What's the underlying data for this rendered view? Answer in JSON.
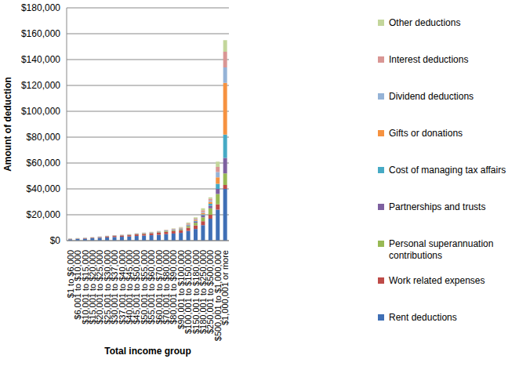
{
  "chart_data": {
    "type": "bar",
    "stacked": true,
    "grid": true,
    "legend": "right",
    "x_label": "Total income group",
    "y_label": "Amount of deduction",
    "categories": [
      "$1 to $6,000",
      "$6,001 to $10,000",
      "$10,001 to $15,000",
      "$15,001 to $20,000",
      "$20,001 to $25,000",
      "$25,001 to $30,000",
      "$30,001 to $37,000",
      "$37,001 to $40,000",
      "$40,001 to $45,000",
      "$45,001 to $50,000",
      "$50,001 to $55,000",
      "$55,001 to $60,000",
      "$60,001 to $70,000",
      "$70,001 to $80,000",
      "$80,001 to $90,000",
      "$90,001 to $100,000",
      "$100,001 to $150,000",
      "$150,001 to $180,000",
      "$180,001 to $250,000",
      "$250,001 to $500,000",
      "$500,001 to $1,000,000",
      "$1,000,001 or more"
    ],
    "ylim": [
      0,
      180000
    ],
    "yticks": [
      {
        "value": 0,
        "label": "$0"
      },
      {
        "value": 20000,
        "label": "$20,000"
      },
      {
        "value": 40000,
        "label": "$40,000"
      },
      {
        "value": 60000,
        "label": "$60,000"
      },
      {
        "value": 80000,
        "label": "$80,000"
      },
      {
        "value": 100000,
        "label": "$100,000"
      },
      {
        "value": 120000,
        "label": "$120,000"
      },
      {
        "value": 140000,
        "label": "$140,000"
      },
      {
        "value": 160000,
        "label": "$160,000"
      },
      {
        "value": 180000,
        "label": "$180,000"
      }
    ],
    "series": [
      {
        "name": "Rent deductions",
        "color": "#3f6fb5",
        "values": [
          1000,
          1200,
          1500,
          1800,
          2100,
          2500,
          2800,
          3000,
          3200,
          3600,
          3900,
          4200,
          4500,
          5000,
          5500,
          6000,
          7500,
          9000,
          12000,
          17000,
          24000,
          40000
        ]
      },
      {
        "name": "Work related expenses",
        "color": "#be4b48",
        "values": [
          150,
          200,
          300,
          400,
          550,
          700,
          800,
          900,
          1000,
          1200,
          1300,
          1400,
          1600,
          1800,
          1900,
          2000,
          2500,
          2800,
          3000,
          3000,
          4000,
          3000
        ]
      },
      {
        "name": "Personal superannuation contributions",
        "color": "#98b954",
        "values": [
          50,
          60,
          80,
          100,
          120,
          140,
          150,
          180,
          200,
          220,
          250,
          300,
          400,
          500,
          600,
          700,
          1200,
          2000,
          3000,
          5000,
          8000,
          9000
        ]
      },
      {
        "name": "Partnerships and trusts",
        "color": "#7d60a0",
        "values": [
          70,
          80,
          90,
          100,
          110,
          120,
          130,
          150,
          160,
          180,
          200,
          220,
          250,
          300,
          350,
          400,
          600,
          900,
          1500,
          2000,
          4000,
          12000
        ]
      },
      {
        "name": "Cost of managing tax affairs",
        "color": "#46aac5",
        "values": [
          80,
          80,
          80,
          80,
          90,
          100,
          110,
          120,
          130,
          140,
          150,
          160,
          180,
          200,
          220,
          250,
          350,
          500,
          800,
          1500,
          4000,
          18000
        ]
      },
      {
        "name": "Gifts or donations",
        "color": "#f69240",
        "values": [
          60,
          60,
          60,
          60,
          70,
          80,
          80,
          90,
          100,
          120,
          130,
          150,
          170,
          200,
          220,
          250,
          400,
          600,
          1000,
          1500,
          5000,
          40000
        ]
      },
      {
        "name": "Dividend deductions",
        "color": "#95b3d7",
        "values": [
          80,
          60,
          50,
          50,
          50,
          60,
          60,
          70,
          80,
          90,
          100,
          110,
          130,
          150,
          180,
          200,
          300,
          400,
          700,
          1000,
          4000,
          12000
        ]
      },
      {
        "name": "Interest deductions",
        "color": "#d99694",
        "values": [
          150,
          100,
          70,
          60,
          60,
          60,
          50,
          60,
          80,
          90,
          100,
          150,
          170,
          200,
          250,
          300,
          500,
          800,
          1500,
          1500,
          4000,
          12000
        ]
      },
      {
        "name": "Other deductions",
        "color": "#c3d69b",
        "values": [
          160,
          160,
          70,
          50,
          50,
          40,
          20,
          30,
          50,
          60,
          70,
          110,
          100,
          150,
          280,
          400,
          650,
          1000,
          1500,
          1000,
          4000,
          9000
        ]
      }
    ]
  }
}
